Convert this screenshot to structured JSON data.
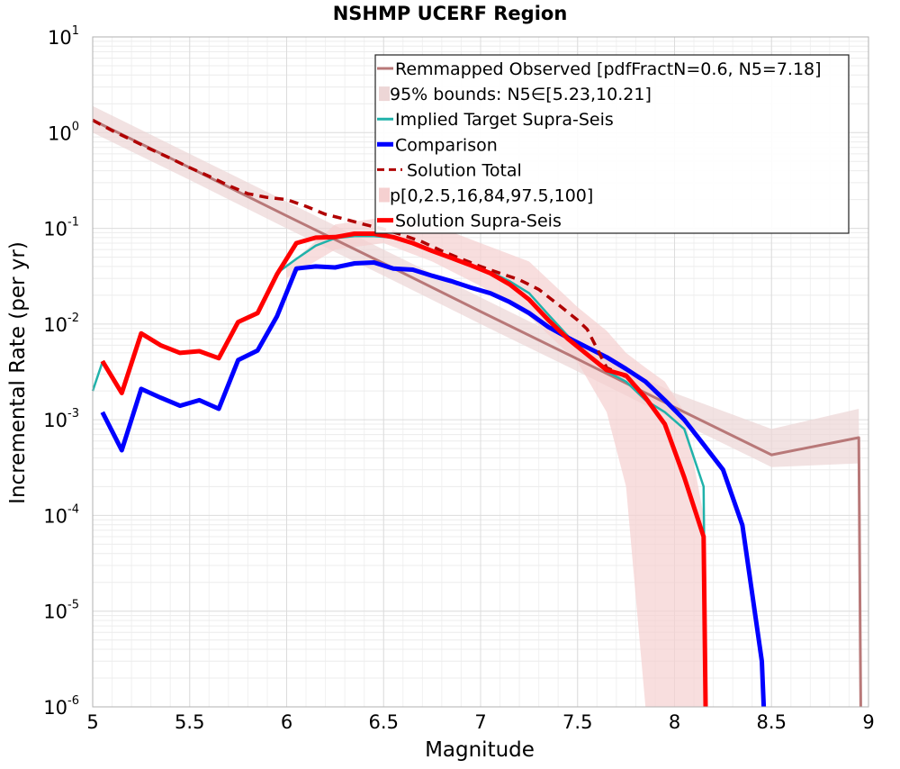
{
  "chart_data": {
    "type": "line",
    "title": "NSHMP UCERF Region",
    "xlabel": "Magnitude",
    "ylabel": "Incremental Rate (per yr)",
    "xlim": [
      5,
      9
    ],
    "ylim": [
      1e-06,
      10
    ],
    "yscale": "log",
    "grid": true,
    "legend_position": "top-right",
    "x_ticks": [
      "5",
      "5.5",
      "6",
      "6.5",
      "7",
      "7.5",
      "8",
      "8.5",
      "9"
    ],
    "y_ticks": [
      {
        "base": "10",
        "exp": "1"
      },
      {
        "base": "10",
        "exp": "0"
      },
      {
        "base": "10",
        "exp": "-1"
      },
      {
        "base": "10",
        "exp": "-2"
      },
      {
        "base": "10",
        "exp": "-3"
      },
      {
        "base": "10",
        "exp": "-4"
      },
      {
        "base": "10",
        "exp": "-5"
      },
      {
        "base": "10",
        "exp": "-6"
      }
    ],
    "legend": [
      {
        "label": "Remmapped Observed [pdfFractN=0.6, N5=7.18]",
        "color": "#b87878",
        "style": "line"
      },
      {
        "label": "95% bounds: N5∈[5.23,10.21]",
        "color": "#edd6d6",
        "style": "patch"
      },
      {
        "label": "Implied Target Supra-Seis",
        "color": "#20b2aa",
        "style": "line"
      },
      {
        "label": "Comparison",
        "color": "#0000ff",
        "style": "thick"
      },
      {
        "label": "Solution Total",
        "color": "#b00000",
        "style": "dashed"
      },
      {
        "label": "p[0,2.5,16,84,97.5,100]",
        "color": "#f5d0d0",
        "style": "patch"
      },
      {
        "label": "Solution Supra-Seis",
        "color": "#ff0000",
        "style": "thick"
      }
    ],
    "series": [
      {
        "name": "Remmapped Observed [pdfFractN=0.6, N5=7.18]",
        "color": "#b87878",
        "x": [
          5.0,
          5.5,
          6.0,
          6.5,
          7.0,
          7.5,
          8.0,
          8.5,
          8.95,
          8.96
        ],
        "y": [
          1.35,
          0.43,
          0.135,
          0.043,
          0.0135,
          0.0043,
          0.00135,
          0.00043,
          0.00065,
          1e-06
        ]
      },
      {
        "name": "95% bounds: N5∈[5.23,10.21]",
        "type": "band",
        "color": "#edd6d6",
        "x": [
          5.0,
          5.5,
          6.0,
          6.5,
          7.0,
          7.5,
          8.0,
          8.5,
          8.95,
          8.96
        ],
        "y_low": [
          1.0,
          0.32,
          0.1,
          0.032,
          0.01,
          0.0032,
          0.001,
          0.00032,
          0.00035,
          1e-06
        ],
        "y_high": [
          1.9,
          0.6,
          0.19,
          0.06,
          0.019,
          0.006,
          0.0019,
          0.0008,
          0.0013,
          1e-06
        ]
      },
      {
        "name": "Implied Target Supra-Seis",
        "color": "#20b2aa",
        "x": [
          5.0,
          5.05,
          5.15,
          5.25,
          5.35,
          5.45,
          5.55,
          5.65,
          5.75,
          5.85,
          5.95,
          6.05,
          6.15,
          6.25,
          6.35,
          6.45,
          6.55,
          6.65,
          6.75,
          6.85,
          6.95,
          7.05,
          7.15,
          7.25,
          7.35,
          7.45,
          7.55,
          7.65,
          7.75,
          7.85,
          7.95,
          8.05,
          8.15,
          8.16
        ],
        "y": [
          0.002,
          0.004,
          0.002,
          0.008,
          0.006,
          0.005,
          0.0052,
          0.0045,
          0.0105,
          0.013,
          0.034,
          0.048,
          0.066,
          0.079,
          0.083,
          0.083,
          0.08,
          0.069,
          0.057,
          0.048,
          0.041,
          0.035,
          0.028,
          0.021,
          0.0125,
          0.0075,
          0.0048,
          0.0032,
          0.0025,
          0.0016,
          0.0012,
          0.0008,
          0.0002,
          1e-06
        ]
      },
      {
        "name": "Comparison",
        "color": "#0000ff",
        "x": [
          5.05,
          5.15,
          5.25,
          5.35,
          5.45,
          5.55,
          5.65,
          5.75,
          5.85,
          5.95,
          6.05,
          6.15,
          6.25,
          6.35,
          6.45,
          6.55,
          6.65,
          6.75,
          6.85,
          6.95,
          7.05,
          7.15,
          7.25,
          7.35,
          7.45,
          7.55,
          7.65,
          7.75,
          7.85,
          7.95,
          8.05,
          8.15,
          8.25,
          8.35,
          8.45,
          8.46
        ],
        "y": [
          0.0012,
          0.00048,
          0.0021,
          0.0017,
          0.0014,
          0.0016,
          0.0013,
          0.0042,
          0.0053,
          0.012,
          0.038,
          0.04,
          0.039,
          0.043,
          0.044,
          0.038,
          0.037,
          0.032,
          0.028,
          0.024,
          0.021,
          0.017,
          0.013,
          0.0093,
          0.0072,
          0.0057,
          0.0045,
          0.0034,
          0.0025,
          0.0016,
          0.001,
          0.00055,
          0.0003,
          7.9e-05,
          3e-06,
          1e-06
        ]
      },
      {
        "name": "Solution Total",
        "color": "#b00000",
        "x": [
          5.0,
          5.1,
          5.2,
          5.3,
          5.4,
          5.5,
          5.6,
          5.7,
          5.8,
          5.9,
          6.0,
          6.1,
          6.2,
          6.3,
          6.4,
          6.5,
          6.6,
          6.7,
          6.8,
          6.9,
          7.0,
          7.1,
          7.2,
          7.3,
          7.4,
          7.5,
          7.55,
          7.65,
          7.75
        ],
        "y": [
          1.35,
          1.05,
          0.84,
          0.67,
          0.54,
          0.43,
          0.35,
          0.28,
          0.23,
          0.21,
          0.2,
          0.17,
          0.14,
          0.125,
          0.11,
          0.098,
          0.085,
          0.072,
          0.058,
          0.048,
          0.04,
          0.034,
          0.029,
          0.023,
          0.016,
          0.011,
          0.0088,
          0.0035,
          0.0028
        ]
      },
      {
        "name": "p[0,2.5,16,84,97.5,100]",
        "type": "band",
        "color": "#f5d0d0",
        "x": [
          6.0,
          6.25,
          6.5,
          6.75,
          7.0,
          7.25,
          7.5,
          7.65,
          7.75,
          7.85,
          7.95,
          8.05,
          8.15
        ],
        "y_low": [
          0.03,
          0.06,
          0.07,
          0.045,
          0.025,
          0.012,
          0.004,
          0.0012,
          0.0002,
          1e-06,
          1e-06,
          1e-06,
          1e-06
        ],
        "y_high": [
          0.04,
          0.11,
          0.13,
          0.11,
          0.07,
          0.045,
          0.015,
          0.0085,
          0.005,
          0.0035,
          0.0025,
          0.0012,
          0.0001
        ]
      },
      {
        "name": "Solution Supra-Seis",
        "color": "#ff0000",
        "x": [
          5.05,
          5.15,
          5.25,
          5.35,
          5.45,
          5.55,
          5.65,
          5.75,
          5.85,
          5.95,
          6.05,
          6.15,
          6.25,
          6.35,
          6.45,
          6.55,
          6.65,
          6.75,
          6.85,
          6.95,
          7.05,
          7.15,
          7.25,
          7.35,
          7.45,
          7.55,
          7.65,
          7.75,
          7.85,
          7.95,
          8.05,
          8.15,
          8.16
        ],
        "y": [
          0.0041,
          0.0019,
          0.008,
          0.006,
          0.005,
          0.0052,
          0.0044,
          0.0105,
          0.013,
          0.033,
          0.07,
          0.08,
          0.081,
          0.088,
          0.088,
          0.081,
          0.07,
          0.058,
          0.049,
          0.041,
          0.034,
          0.026,
          0.018,
          0.011,
          0.007,
          0.0048,
          0.0033,
          0.0029,
          0.0017,
          0.0009,
          0.00025,
          6e-05,
          1e-06
        ]
      }
    ]
  }
}
